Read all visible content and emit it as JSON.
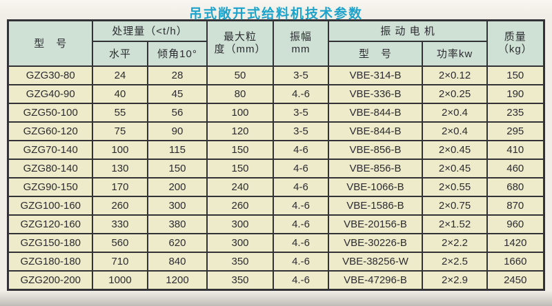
{
  "title": "吊式敞开式给料机技术参数",
  "colors": {
    "title": "#1ea4cb",
    "header_bg": "#cfe1d5",
    "row_bg": "#eeebca",
    "border": "#323236",
    "page_bg": "#f1eee7",
    "text": "#2b2b31"
  },
  "table": {
    "headers": {
      "model": "型　号",
      "capacity_group": "处理量（<t/h）",
      "capacity_horizontal": "水平",
      "capacity_incline": "倾角10°",
      "max_particle": "最大粒\n度（mm）",
      "amplitude": "振幅\nmm",
      "motor_group": "振 动 电 机",
      "motor_model": "型　号",
      "motor_power": "功率kw",
      "mass": "质量\n（kg）"
    },
    "rows": [
      [
        "GZG30-80",
        "24",
        "28",
        "50",
        "3-5",
        "VBE-314-B",
        "2×0.12",
        "150"
      ],
      [
        "GZG40-90",
        "40",
        "45",
        "80",
        "4.-6",
        "VBE-336-B",
        "2×0.25",
        "190"
      ],
      [
        "GZG50-100",
        "55",
        "56",
        "100",
        "3-5",
        "VBE-844-B",
        "2×0.4",
        "235"
      ],
      [
        "GZG60-120",
        "75",
        "90",
        "120",
        "3-5",
        "VBE-844-B",
        "2×0.4",
        "295"
      ],
      [
        "GZG70-140",
        "100",
        "115",
        "150",
        "4-6",
        "VBE-856-B",
        "2×0.45",
        "410"
      ],
      [
        "GZG80-140",
        "130",
        "150",
        "150",
        "4-6",
        "VBE-856-B",
        "2×0.45",
        "460"
      ],
      [
        "GZG90-150",
        "170",
        "200",
        "240",
        "4-6",
        "VBE-1066-B",
        "2×0.55",
        "680"
      ],
      [
        "GZG100-160",
        "260",
        "300",
        "260",
        "4.-6",
        "VBE-1586-B",
        "2×0.75",
        "870"
      ],
      [
        "GZG120-160",
        "330",
        "380",
        "300",
        "4.-6",
        "VBE-20156-B",
        "2×1.52",
        "960"
      ],
      [
        "GZG150-180",
        "560",
        "620",
        "300",
        "4.-6",
        "VBE-30226-B",
        "2×2.2",
        "1420"
      ],
      [
        "GZG180-180",
        "710",
        "840",
        "350",
        "4.-6",
        "VBE-38256-W",
        "2×2.5",
        "1660"
      ],
      [
        "GZG200-200",
        "1000",
        "1200",
        "350",
        "4.-6",
        "VBE-47296-B",
        "2×2.9",
        "2450"
      ]
    ]
  }
}
